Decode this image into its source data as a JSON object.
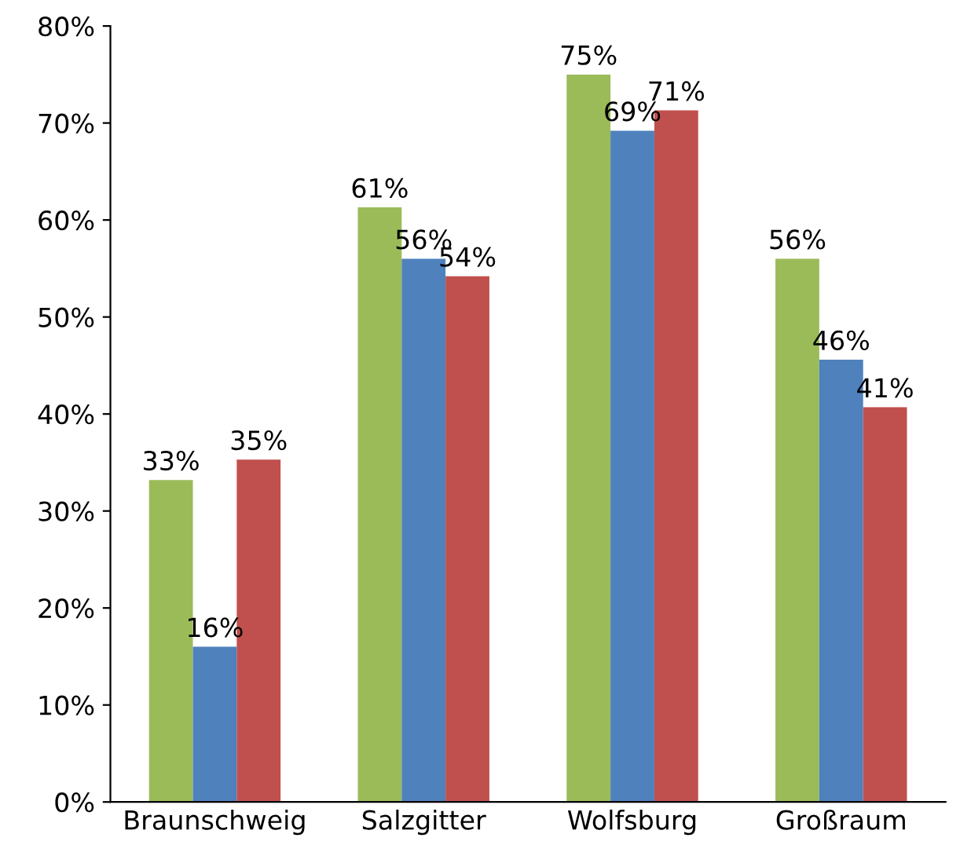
{
  "chart_data": {
    "type": "bar",
    "categories": [
      "Braunschweig",
      "Salzgitter",
      "Wolfsburg",
      "Großraum"
    ],
    "series": [
      {
        "color": "#9bbb59",
        "values": [
          33.2,
          61.3,
          75,
          56
        ],
        "value_labels": [
          "33%",
          "61%",
          "75%",
          "56%"
        ]
      },
      {
        "color": "#4f81bd",
        "values": [
          16,
          56,
          69.2,
          45.6
        ],
        "value_labels": [
          "16%",
          "56%",
          "69%",
          "46%"
        ]
      },
      {
        "color": "#c0504d",
        "values": [
          35.3,
          54.2,
          71.3,
          40.7
        ],
        "value_labels": [
          "35%",
          "54%",
          "71%",
          "41%"
        ]
      }
    ],
    "ylim": [
      0,
      80
    ],
    "yticks": [
      {
        "value": 0,
        "label": "0%"
      },
      {
        "value": 10,
        "label": "10%"
      },
      {
        "value": 20,
        "label": "20%"
      },
      {
        "value": 30,
        "label": "30%"
      },
      {
        "value": 40,
        "label": "40%"
      },
      {
        "value": 50,
        "label": "50%"
      },
      {
        "value": 60,
        "label": "60%"
      },
      {
        "value": 70,
        "label": "70%"
      },
      {
        "value": 80,
        "label": "80%"
      }
    ],
    "grid": false,
    "legend": false
  }
}
